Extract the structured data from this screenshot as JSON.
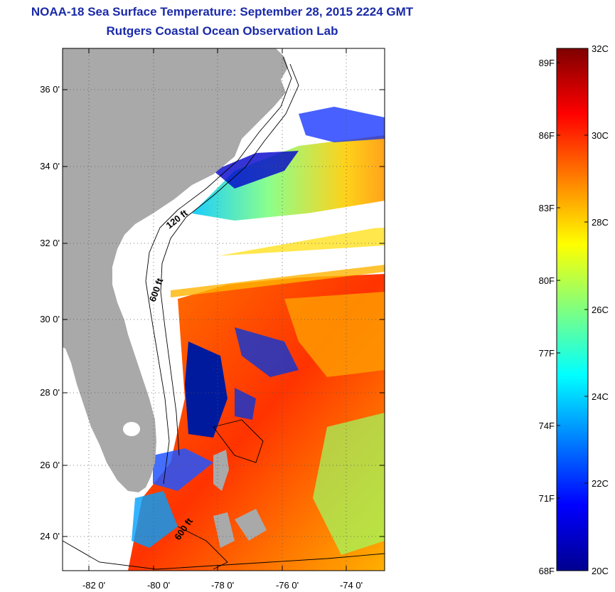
{
  "title": {
    "line1": "NOAA-18 Sea Surface Temperature:  September 28, 2015 2224 GMT",
    "line2": "Rutgers Coastal Ocean Observation Lab"
  },
  "map": {
    "lat_labels": [
      "36 0'",
      "34 0'",
      "32 0'",
      "30 0'",
      "28 0'",
      "26 0'",
      "24 0'"
    ],
    "lon_labels": [
      "-82 0'",
      "-80 0'",
      "-78 0'",
      "-76 0'",
      "-74 0'"
    ],
    "contour_labels": [
      "120 ft",
      "600 ft",
      "600 ft"
    ],
    "colors": {
      "land": "#a9a9a9",
      "frame": "#000000",
      "grid": "#555555"
    }
  },
  "colorbar": {
    "fahrenheit_labels": [
      "89F",
      "86F",
      "83F",
      "80F",
      "77F",
      "74F",
      "71F",
      "68F"
    ],
    "celsius_labels": [
      "32C",
      "30C",
      "28C",
      "26C",
      "24C",
      "22C",
      "20C"
    ],
    "range_c": [
      20,
      32
    ],
    "colormap": "jet"
  }
}
